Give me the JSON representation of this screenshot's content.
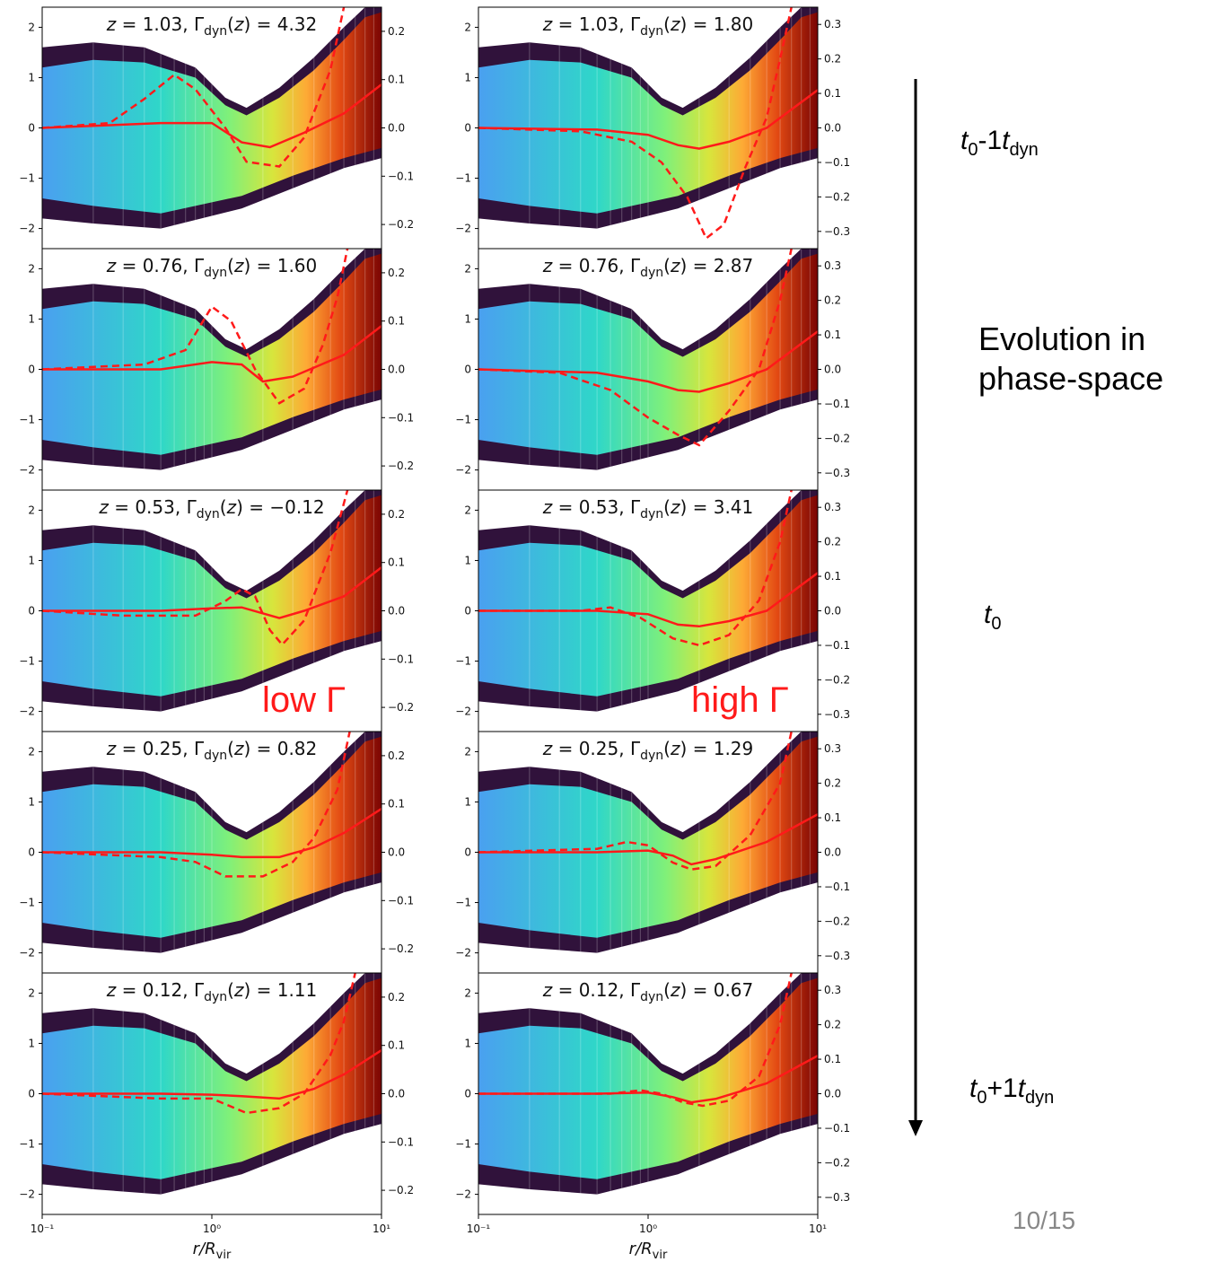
{
  "chart_data": {
    "type": "heatmap",
    "colormap": "turbo",
    "line_color": "#ff1a1a",
    "xlabel": "r/R_vir",
    "x_scale": "log",
    "xlim": [
      0.1,
      10
    ],
    "x_tick_labels": [
      "10⁻¹",
      "10⁰",
      "10¹"
    ],
    "grid": true,
    "columns": [
      {
        "column": "low Gamma",
        "left_ylim": [
          -2.4,
          2.4
        ],
        "left_yticks": [
          -2,
          -1,
          0,
          1,
          2
        ],
        "right_ylim": [
          -0.25,
          0.25
        ],
        "right_yticks": [
          -0.2,
          -0.1,
          0.0,
          0.1,
          0.2
        ],
        "panels": [
          {
            "z": "1.03",
            "gamma": "4.32",
            "solid": [
              [
                0.1,
                0.0
              ],
              [
                0.5,
                0.01
              ],
              [
                1.0,
                0.01
              ],
              [
                1.5,
                -0.03
              ],
              [
                2.2,
                -0.04
              ],
              [
                3.5,
                -0.01
              ],
              [
                6,
                0.03
              ],
              [
                10,
                0.09
              ]
            ],
            "dashed": [
              [
                0.1,
                0.0
              ],
              [
                0.25,
                0.01
              ],
              [
                0.4,
                0.06
              ],
              [
                0.6,
                0.11
              ],
              [
                0.8,
                0.08
              ],
              [
                1.2,
                0.0
              ],
              [
                1.6,
                -0.07
              ],
              [
                2.5,
                -0.08
              ],
              [
                3.5,
                -0.02
              ],
              [
                5,
                0.12
              ],
              [
                6,
                0.25
              ]
            ]
          },
          {
            "z": "0.76",
            "gamma": "1.60",
            "solid": [
              [
                0.1,
                0.0
              ],
              [
                0.5,
                0.0
              ],
              [
                1.0,
                0.015
              ],
              [
                1.5,
                0.01
              ],
              [
                2.0,
                -0.025
              ],
              [
                3.0,
                -0.015
              ],
              [
                6,
                0.03
              ],
              [
                10,
                0.09
              ]
            ],
            "dashed": [
              [
                0.1,
                0.0
              ],
              [
                0.4,
                0.01
              ],
              [
                0.7,
                0.04
              ],
              [
                1.0,
                0.13
              ],
              [
                1.3,
                0.1
              ],
              [
                1.8,
                0.0
              ],
              [
                2.5,
                -0.07
              ],
              [
                3.5,
                -0.04
              ],
              [
                4.5,
                0.05
              ],
              [
                5.5,
                0.15
              ],
              [
                6.3,
                0.25
              ]
            ]
          },
          {
            "z": "0.53",
            "gamma": "−0.12",
            "solid": [
              [
                0.1,
                0.0
              ],
              [
                0.5,
                0.0
              ],
              [
                1.0,
                0.005
              ],
              [
                1.5,
                0.007
              ],
              [
                2.5,
                -0.015
              ],
              [
                3.5,
                0.0
              ],
              [
                6,
                0.03
              ],
              [
                10,
                0.09
              ]
            ],
            "dashed": [
              [
                0.1,
                0.0
              ],
              [
                0.3,
                -0.01
              ],
              [
                0.8,
                -0.01
              ],
              [
                1.2,
                0.02
              ],
              [
                1.5,
                0.045
              ],
              [
                1.8,
                0.03
              ],
              [
                2.2,
                -0.04
              ],
              [
                2.6,
                -0.07
              ],
              [
                3.5,
                -0.02
              ],
              [
                5,
                0.12
              ],
              [
                6.3,
                0.25
              ]
            ]
          },
          {
            "z": "0.25",
            "gamma": "0.82",
            "solid": [
              [
                0.1,
                0.0
              ],
              [
                0.5,
                0.0
              ],
              [
                1.0,
                -0.005
              ],
              [
                1.5,
                -0.01
              ],
              [
                2.5,
                -0.01
              ],
              [
                4,
                0.01
              ],
              [
                6,
                0.04
              ],
              [
                10,
                0.09
              ]
            ],
            "dashed": [
              [
                0.1,
                0.0
              ],
              [
                0.5,
                -0.01
              ],
              [
                0.8,
                -0.02
              ],
              [
                1.2,
                -0.05
              ],
              [
                2.0,
                -0.05
              ],
              [
                3.0,
                -0.02
              ],
              [
                4.0,
                0.03
              ],
              [
                5.5,
                0.13
              ],
              [
                6.5,
                0.25
              ]
            ]
          },
          {
            "z": "0.12",
            "gamma": "1.11",
            "solid": [
              [
                0.1,
                0.0
              ],
              [
                0.5,
                0.0
              ],
              [
                1.0,
                -0.002
              ],
              [
                1.5,
                -0.005
              ],
              [
                2.5,
                -0.01
              ],
              [
                4,
                0.01
              ],
              [
                6,
                0.04
              ],
              [
                10,
                0.09
              ]
            ],
            "dashed": [
              [
                0.1,
                0.0
              ],
              [
                0.5,
                -0.01
              ],
              [
                1.0,
                -0.01
              ],
              [
                1.6,
                -0.04
              ],
              [
                2.5,
                -0.03
              ],
              [
                3.5,
                0.0
              ],
              [
                5,
                0.08
              ],
              [
                6,
                0.15
              ],
              [
                7,
                0.25
              ]
            ]
          }
        ]
      },
      {
        "column": "high Gamma",
        "left_ylim": [
          -2.4,
          2.4
        ],
        "left_yticks": [
          -2,
          -1,
          0,
          1,
          2
        ],
        "right_ylim": [
          -0.35,
          0.35
        ],
        "right_yticks": [
          -0.3,
          -0.2,
          -0.1,
          0.0,
          0.1,
          0.2,
          0.3
        ],
        "panels": [
          {
            "z": "1.03",
            "gamma": "1.80",
            "solid": [
              [
                0.1,
                0.0
              ],
              [
                0.5,
                -0.005
              ],
              [
                1.0,
                -0.02
              ],
              [
                1.5,
                -0.05
              ],
              [
                2.0,
                -0.06
              ],
              [
                3.0,
                -0.04
              ],
              [
                5,
                0.0
              ],
              [
                10,
                0.11
              ]
            ],
            "dashed": [
              [
                0.1,
                0.0
              ],
              [
                0.4,
                -0.01
              ],
              [
                0.8,
                -0.04
              ],
              [
                1.2,
                -0.1
              ],
              [
                1.7,
                -0.2
              ],
              [
                2.2,
                -0.32
              ],
              [
                2.8,
                -0.28
              ],
              [
                3.7,
                -0.12
              ],
              [
                5,
                0.03
              ],
              [
                6,
                0.2
              ],
              [
                7,
                0.35
              ]
            ]
          },
          {
            "z": "0.76",
            "gamma": "2.87",
            "solid": [
              [
                0.1,
                0.0
              ],
              [
                0.5,
                -0.01
              ],
              [
                1.0,
                -0.035
              ],
              [
                1.5,
                -0.06
              ],
              [
                2.0,
                -0.065
              ],
              [
                3.0,
                -0.04
              ],
              [
                5,
                0.0
              ],
              [
                10,
                0.11
              ]
            ],
            "dashed": [
              [
                0.1,
                0.0
              ],
              [
                0.3,
                -0.01
              ],
              [
                0.6,
                -0.06
              ],
              [
                1.0,
                -0.14
              ],
              [
                1.5,
                -0.19
              ],
              [
                2.0,
                -0.22
              ],
              [
                3,
                -0.12
              ],
              [
                4.5,
                0.0
              ],
              [
                6,
                0.2
              ],
              [
                7,
                0.35
              ]
            ]
          },
          {
            "z": "0.53",
            "gamma": "3.41",
            "solid": [
              [
                0.1,
                0.0
              ],
              [
                0.5,
                0.0
              ],
              [
                1.0,
                -0.01
              ],
              [
                1.5,
                -0.04
              ],
              [
                2.0,
                -0.045
              ],
              [
                3.0,
                -0.03
              ],
              [
                5,
                0.0
              ],
              [
                10,
                0.11
              ]
            ],
            "dashed": [
              [
                0.1,
                0.0
              ],
              [
                0.4,
                0.0
              ],
              [
                0.6,
                0.01
              ],
              [
                0.9,
                -0.02
              ],
              [
                1.4,
                -0.08
              ],
              [
                2.0,
                -0.1
              ],
              [
                3,
                -0.07
              ],
              [
                4.5,
                0.03
              ],
              [
                6,
                0.2
              ],
              [
                7,
                0.35
              ]
            ]
          },
          {
            "z": "0.25",
            "gamma": "1.29",
            "solid": [
              [
                0.1,
                0.0
              ],
              [
                0.5,
                0.0
              ],
              [
                1.0,
                0.005
              ],
              [
                1.4,
                -0.01
              ],
              [
                1.8,
                -0.035
              ],
              [
                2.5,
                -0.02
              ],
              [
                5,
                0.03
              ],
              [
                10,
                0.11
              ]
            ],
            "dashed": [
              [
                0.1,
                0.0
              ],
              [
                0.5,
                0.01
              ],
              [
                0.75,
                0.03
              ],
              [
                1.0,
                0.02
              ],
              [
                1.4,
                -0.03
              ],
              [
                1.8,
                -0.05
              ],
              [
                2.5,
                -0.04
              ],
              [
                4,
                0.05
              ],
              [
                6,
                0.2
              ],
              [
                7,
                0.35
              ]
            ]
          },
          {
            "z": "0.12",
            "gamma": "0.67",
            "solid": [
              [
                0.1,
                0.0
              ],
              [
                0.5,
                0.0
              ],
              [
                1.0,
                0.003
              ],
              [
                1.4,
                -0.01
              ],
              [
                1.8,
                -0.025
              ],
              [
                2.5,
                -0.015
              ],
              [
                5,
                0.03
              ],
              [
                10,
                0.11
              ]
            ],
            "dashed": [
              [
                0.1,
                0.0
              ],
              [
                0.6,
                0.0
              ],
              [
                0.9,
                0.01
              ],
              [
                1.2,
                0.0
              ],
              [
                1.6,
                -0.025
              ],
              [
                2.1,
                -0.035
              ],
              [
                3,
                -0.02
              ],
              [
                4.5,
                0.05
              ],
              [
                6,
                0.2
              ],
              [
                7,
                0.35
              ]
            ]
          }
        ]
      }
    ]
  },
  "labels": {
    "low_gamma": "low Γ",
    "high_gamma": "high Γ",
    "arrow_top_t": "t",
    "arrow_top_sub0": "0",
    "arrow_top_mid": "-1",
    "arrow_top_t2": "t",
    "arrow_top_sub": "dyn",
    "evolution_line1": "Evolution in",
    "evolution_line2": "phase-space",
    "t0_t": "t",
    "t0_sub": "0",
    "arrow_bottom_t": "t",
    "arrow_bottom_sub0": "0",
    "arrow_bottom_mid": "+1",
    "arrow_bottom_t2": "t",
    "arrow_bottom_sub": "dyn",
    "page_number": "10/15"
  }
}
